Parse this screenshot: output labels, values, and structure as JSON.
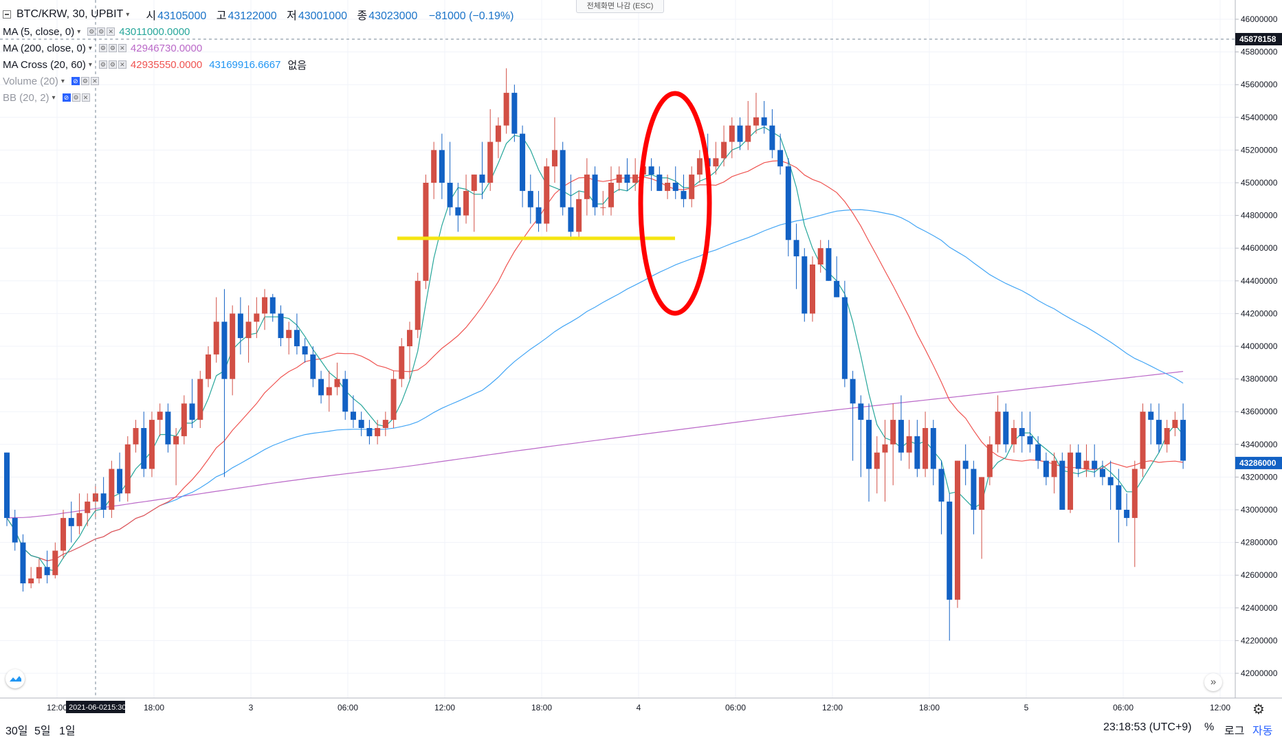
{
  "header": {
    "symbol": "BTC/KRW, 30, UPBIT",
    "open_label": "시",
    "open": "43105000",
    "high_label": "고",
    "high": "43122000",
    "low_label": "저",
    "low": "43001000",
    "close_label": "종",
    "close": "43023000",
    "change": "−81000 (−0.19%)"
  },
  "fullscreen_exit": "전체화면 나감 (ESC)",
  "indicators": [
    {
      "label": "MA (5, close, 0)",
      "values": [
        "43011000.0000"
      ],
      "colors": [
        "#26a69a"
      ],
      "suffix": ""
    },
    {
      "label": "MA (200, close, 0)",
      "values": [
        "42946730.0000"
      ],
      "colors": [
        "#ba68c8"
      ],
      "suffix": ""
    },
    {
      "label": "MA Cross (20, 60)",
      "values": [
        "42935550.0000",
        "43169916.6667"
      ],
      "colors": [
        "#ef5350",
        "#2196f3"
      ],
      "suffix": "없음"
    },
    {
      "label": "Volume (20)",
      "values": [],
      "colors": [],
      "suffix": ""
    },
    {
      "label": "BB (20, 2)",
      "values": [],
      "colors": [],
      "suffix": ""
    }
  ],
  "crosshair": {
    "date_label": "2021-06-02",
    "time_label": "15:30",
    "price_label": "45878158"
  },
  "bottom": {
    "ranges": [
      "30일",
      "5일",
      "1일"
    ],
    "clock": "23:18:53 (UTC+9)",
    "percent": "%",
    "log": "로그",
    "auto": "자동"
  },
  "chart_data": {
    "type": "candlestick",
    "title": "BTC/KRW, 30, UPBIT",
    "xlabel": "",
    "ylabel": "",
    "ylim": [
      41900000,
      46100000
    ],
    "x_tick_labels": [
      "12:00",
      "18:00",
      "3",
      "06:00",
      "12:00",
      "18:00",
      "4",
      "06:00",
      "12:00",
      "18:00",
      "5",
      "06:00",
      "12:00"
    ],
    "y_tick_labels": [
      "46000000",
      "45800000",
      "45600000",
      "45400000",
      "45200000",
      "45000000",
      "44800000",
      "44600000",
      "44400000",
      "44200000",
      "44000000",
      "43800000",
      "43600000",
      "43400000",
      "43200000",
      "43000000",
      "42800000",
      "42600000",
      "42400000",
      "42200000",
      "42000000"
    ],
    "last_price": "43286000",
    "annotations": {
      "support_line_price": 44660000,
      "support_line_color": "#f5e511",
      "ellipse_color": "#ff0000"
    },
    "candles": [
      [
        43350000,
        43350000,
        42900000,
        42950000
      ],
      [
        42950000,
        43000000,
        42750000,
        42800000
      ],
      [
        42800000,
        42850000,
        42500000,
        42550000
      ],
      [
        42550000,
        42650000,
        42520000,
        42580000
      ],
      [
        42580000,
        42700000,
        42550000,
        42650000
      ],
      [
        42650000,
        42750000,
        42550000,
        42600000
      ],
      [
        42600000,
        42800000,
        42580000,
        42750000
      ],
      [
        42750000,
        43000000,
        42700000,
        42950000
      ],
      [
        42950000,
        43050000,
        42800000,
        42900000
      ],
      [
        42900000,
        43100000,
        42850000,
        42980000
      ],
      [
        42980000,
        43100000,
        42900000,
        43050000
      ],
      [
        43050000,
        43150000,
        42950000,
        43100000
      ],
      [
        43100000,
        43200000,
        42950000,
        43000000
      ],
      [
        43000000,
        43300000,
        42950000,
        43250000
      ],
      [
        43250000,
        43350000,
        43050000,
        43100000
      ],
      [
        43100000,
        43450000,
        43050000,
        43400000
      ],
      [
        43400000,
        43550000,
        43350000,
        43500000
      ],
      [
        43500000,
        43600000,
        43200000,
        43250000
      ],
      [
        43250000,
        43600000,
        43200000,
        43550000
      ],
      [
        43550000,
        43650000,
        43450000,
        43600000
      ],
      [
        43600000,
        43650000,
        43350000,
        43400000
      ],
      [
        43400000,
        43500000,
        43150000,
        43450000
      ],
      [
        43450000,
        43700000,
        43400000,
        43650000
      ],
      [
        43650000,
        43800000,
        43500000,
        43550000
      ],
      [
        43550000,
        43850000,
        43500000,
        43800000
      ],
      [
        43800000,
        44000000,
        43750000,
        43950000
      ],
      [
        43950000,
        44300000,
        43900000,
        44150000
      ],
      [
        44150000,
        44350000,
        43200000,
        43800000
      ],
      [
        43800000,
        44250000,
        43700000,
        44200000
      ],
      [
        44200000,
        44300000,
        43950000,
        44050000
      ],
      [
        44050000,
        44250000,
        43900000,
        44150000
      ],
      [
        44150000,
        44300000,
        44050000,
        44200000
      ],
      [
        44200000,
        44350000,
        44100000,
        44300000
      ],
      [
        44300000,
        44320000,
        44150000,
        44200000
      ],
      [
        44200000,
        44250000,
        44000000,
        44050000
      ],
      [
        44050000,
        44150000,
        43950000,
        44100000
      ],
      [
        44100000,
        44200000,
        43950000,
        44000000
      ],
      [
        44000000,
        44050000,
        43900000,
        43950000
      ],
      [
        43950000,
        44000000,
        43750000,
        43800000
      ],
      [
        43800000,
        43850000,
        43650000,
        43700000
      ],
      [
        43700000,
        43850000,
        43600000,
        43750000
      ],
      [
        43750000,
        43900000,
        43700000,
        43800000
      ],
      [
        43800000,
        43850000,
        43550000,
        43600000
      ],
      [
        43600000,
        43700000,
        43500000,
        43550000
      ],
      [
        43550000,
        43600000,
        43450000,
        43500000
      ],
      [
        43500000,
        43550000,
        43400000,
        43450000
      ],
      [
        43450000,
        43550000,
        43400000,
        43500000
      ],
      [
        43500000,
        43600000,
        43450000,
        43550000
      ],
      [
        43550000,
        43850000,
        43500000,
        43800000
      ],
      [
        43800000,
        44050000,
        43750000,
        44000000
      ],
      [
        44000000,
        44150000,
        43800000,
        44100000
      ],
      [
        44100000,
        44450000,
        44050000,
        44400000
      ],
      [
        44400000,
        45050000,
        44350000,
        45000000
      ],
      [
        45000000,
        45250000,
        44900000,
        45200000
      ],
      [
        45200000,
        45300000,
        44900000,
        45000000
      ],
      [
        45000000,
        45250000,
        44800000,
        44850000
      ],
      [
        44850000,
        45000000,
        44700000,
        44800000
      ],
      [
        44800000,
        45050000,
        44750000,
        44950000
      ],
      [
        44950000,
        45050000,
        44700000,
        45050000
      ],
      [
        45050000,
        45250000,
        44900000,
        45000000
      ],
      [
        45000000,
        45450000,
        44950000,
        45250000
      ],
      [
        45250000,
        45400000,
        45150000,
        45350000
      ],
      [
        45350000,
        45700000,
        45300000,
        45550000
      ],
      [
        45550000,
        45600000,
        45250000,
        45300000
      ],
      [
        45300000,
        45350000,
        44850000,
        44950000
      ],
      [
        44950000,
        45050000,
        44750000,
        44850000
      ],
      [
        44850000,
        44950000,
        44700000,
        44750000
      ],
      [
        44750000,
        45150000,
        44700000,
        45100000
      ],
      [
        45100000,
        45400000,
        45000000,
        45200000
      ],
      [
        45200000,
        45250000,
        44800000,
        44850000
      ],
      [
        44850000,
        45050000,
        44650000,
        44700000
      ],
      [
        44700000,
        44950000,
        44650000,
        44900000
      ],
      [
        44900000,
        45150000,
        44800000,
        45050000
      ],
      [
        45050000,
        45100000,
        44800000,
        44850000
      ],
      [
        44850000,
        44950000,
        44800000,
        44850000
      ],
      [
        44850000,
        45100000,
        44800000,
        45000000
      ],
      [
        45000000,
        45100000,
        44950000,
        45050000
      ],
      [
        45050000,
        45150000,
        44950000,
        45000000
      ],
      [
        45000000,
        45150000,
        44950000,
        45050000
      ],
      [
        45050000,
        45150000,
        45000000,
        45100000
      ],
      [
        45100000,
        45150000,
        44950000,
        45050000
      ],
      [
        45050000,
        45100000,
        44950000,
        44950000
      ],
      [
        44950000,
        45050000,
        44900000,
        45000000
      ],
      [
        45000000,
        45100000,
        44900000,
        44950000
      ],
      [
        44950000,
        45050000,
        44850000,
        44900000
      ],
      [
        44900000,
        45100000,
        44850000,
        45050000
      ],
      [
        45050000,
        45200000,
        45000000,
        45150000
      ],
      [
        45150000,
        45300000,
        45050000,
        45100000
      ],
      [
        45100000,
        45250000,
        45050000,
        45150000
      ],
      [
        45150000,
        45350000,
        45100000,
        45250000
      ],
      [
        45250000,
        45400000,
        45150000,
        45350000
      ],
      [
        45350000,
        45400000,
        45200000,
        45250000
      ],
      [
        45250000,
        45500000,
        45200000,
        45350000
      ],
      [
        45350000,
        45550000,
        45300000,
        45400000
      ],
      [
        45400000,
        45500000,
        45300000,
        45350000
      ],
      [
        45350000,
        45450000,
        45150000,
        45200000
      ],
      [
        45200000,
        45300000,
        45050000,
        45100000
      ],
      [
        45100000,
        45150000,
        44550000,
        44650000
      ],
      [
        44650000,
        44750000,
        44350000,
        44550000
      ],
      [
        44550000,
        44600000,
        44150000,
        44200000
      ],
      [
        44200000,
        44550000,
        44150000,
        44500000
      ],
      [
        44500000,
        44650000,
        44450000,
        44600000
      ],
      [
        44600000,
        44650000,
        44400000,
        44400000
      ],
      [
        44400000,
        44550000,
        44300000,
        44300000
      ],
      [
        44300000,
        44400000,
        43750000,
        43800000
      ],
      [
        43800000,
        43850000,
        43300000,
        43650000
      ],
      [
        43650000,
        43700000,
        43200000,
        43550000
      ],
      [
        43550000,
        43650000,
        43050000,
        43250000
      ],
      [
        43250000,
        43450000,
        43100000,
        43350000
      ],
      [
        43350000,
        43550000,
        43050000,
        43400000
      ],
      [
        43400000,
        43650000,
        43150000,
        43550000
      ],
      [
        43550000,
        43700000,
        43300000,
        43350000
      ],
      [
        43350000,
        43550000,
        43250000,
        43450000
      ],
      [
        43450000,
        43550000,
        43200000,
        43250000
      ],
      [
        43250000,
        43600000,
        43200000,
        43500000
      ],
      [
        43500000,
        43550000,
        43150000,
        43250000
      ],
      [
        43250000,
        43300000,
        42850000,
        43050000
      ],
      [
        43050000,
        43100000,
        42200000,
        42450000
      ],
      [
        42450000,
        43300000,
        42400000,
        43300000
      ],
      [
        43300000,
        43400000,
        43150000,
        43250000
      ],
      [
        43250000,
        43300000,
        42850000,
        43000000
      ],
      [
        43000000,
        43200000,
        42700000,
        43200000
      ],
      [
        43200000,
        43450000,
        43150000,
        43400000
      ],
      [
        43400000,
        43700000,
        43350000,
        43600000
      ],
      [
        43600000,
        43650000,
        43350000,
        43400000
      ],
      [
        43400000,
        43550000,
        43350000,
        43500000
      ],
      [
        43500000,
        43600000,
        43350000,
        43450000
      ],
      [
        43450000,
        43600000,
        43350000,
        43400000
      ],
      [
        43400000,
        43450000,
        43250000,
        43300000
      ],
      [
        43300000,
        43350000,
        43150000,
        43200000
      ],
      [
        43200000,
        43350000,
        43100000,
        43300000
      ],
      [
        43300000,
        43350000,
        43000000,
        43000000
      ],
      [
        43000000,
        43400000,
        42980000,
        43350000
      ],
      [
        43350000,
        43400000,
        43200000,
        43250000
      ],
      [
        43250000,
        43400000,
        43200000,
        43300000
      ],
      [
        43300000,
        43400000,
        43200000,
        43250000
      ],
      [
        43250000,
        43300000,
        43150000,
        43200000
      ],
      [
        43200000,
        43300000,
        43000000,
        43150000
      ],
      [
        43150000,
        43250000,
        42800000,
        43000000
      ],
      [
        43000000,
        43100000,
        42900000,
        42950000
      ],
      [
        42950000,
        43300000,
        42650000,
        43250000
      ],
      [
        43250000,
        43650000,
        43200000,
        43600000
      ],
      [
        43600000,
        43650000,
        43400000,
        43550000
      ],
      [
        43550000,
        43650000,
        43350000,
        43400000
      ],
      [
        43400000,
        43550000,
        43350000,
        43500000
      ],
      [
        43500000,
        43600000,
        43450000,
        43550000
      ],
      [
        43550000,
        43650000,
        43250000,
        43300000
      ]
    ],
    "series": [
      {
        "name": "MA (5, close, 0)",
        "color": "#26a69a",
        "values": []
      },
      {
        "name": "MA Cross 20",
        "color": "#ef5350",
        "values": []
      },
      {
        "name": "MA Cross 60",
        "color": "#42a5f5",
        "values": []
      },
      {
        "name": "MA (200, close, 0)",
        "color": "#ba68c8",
        "values": []
      }
    ]
  }
}
